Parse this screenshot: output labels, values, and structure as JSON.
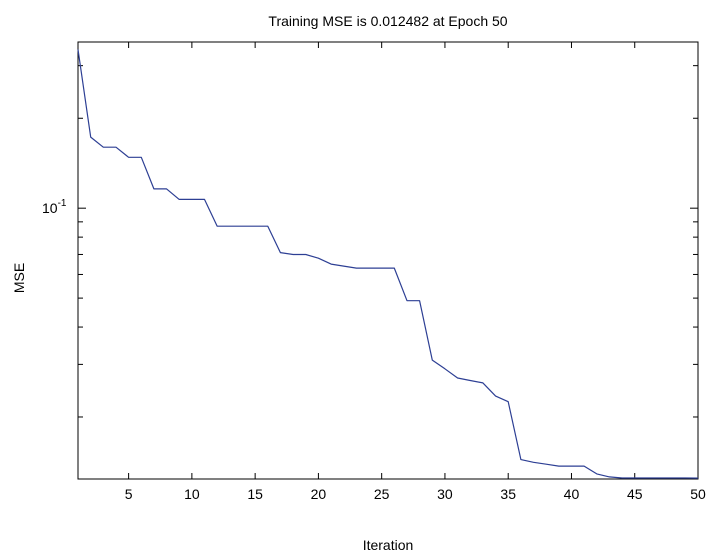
{
  "chart_data": {
    "type": "line",
    "title": "Training MSE is  0.012482  at Epoch  50",
    "xlabel": "Iteration",
    "ylabel": "MSE",
    "xlim": [
      1,
      50
    ],
    "ylim": [
      0.0124,
      0.36
    ],
    "yscale": "log",
    "grid": false,
    "x_ticks": [
      5,
      10,
      15,
      20,
      25,
      30,
      35,
      40,
      45,
      50
    ],
    "y_tick_label": {
      "base": "10",
      "exponent": "-1",
      "value": 0.1
    },
    "series_color": "#2d3f94",
    "series": [
      {
        "x": [
          1,
          2,
          3,
          4,
          5,
          6,
          7,
          8,
          9,
          10,
          11,
          12,
          13,
          14,
          15,
          16,
          17,
          18,
          19,
          20,
          21,
          22,
          23,
          24,
          25,
          26,
          27,
          28,
          29,
          30,
          31,
          32,
          33,
          34,
          35,
          36,
          37,
          38,
          39,
          40,
          41,
          42,
          43,
          44,
          45,
          46,
          47,
          48,
          49,
          50
        ],
        "values": [
          0.34,
          0.173,
          0.16,
          0.16,
          0.148,
          0.148,
          0.116,
          0.116,
          0.107,
          0.107,
          0.107,
          0.087,
          0.087,
          0.087,
          0.087,
          0.087,
          0.071,
          0.07,
          0.07,
          0.068,
          0.065,
          0.064,
          0.063,
          0.063,
          0.063,
          0.063,
          0.049,
          0.049,
          0.031,
          0.029,
          0.027,
          0.0265,
          0.026,
          0.0235,
          0.0225,
          0.0144,
          0.0141,
          0.0139,
          0.0137,
          0.0137,
          0.0137,
          0.0129,
          0.0126,
          0.0125,
          0.0125,
          0.0125,
          0.0125,
          0.0125,
          0.0125,
          0.012482
        ]
      }
    ]
  }
}
